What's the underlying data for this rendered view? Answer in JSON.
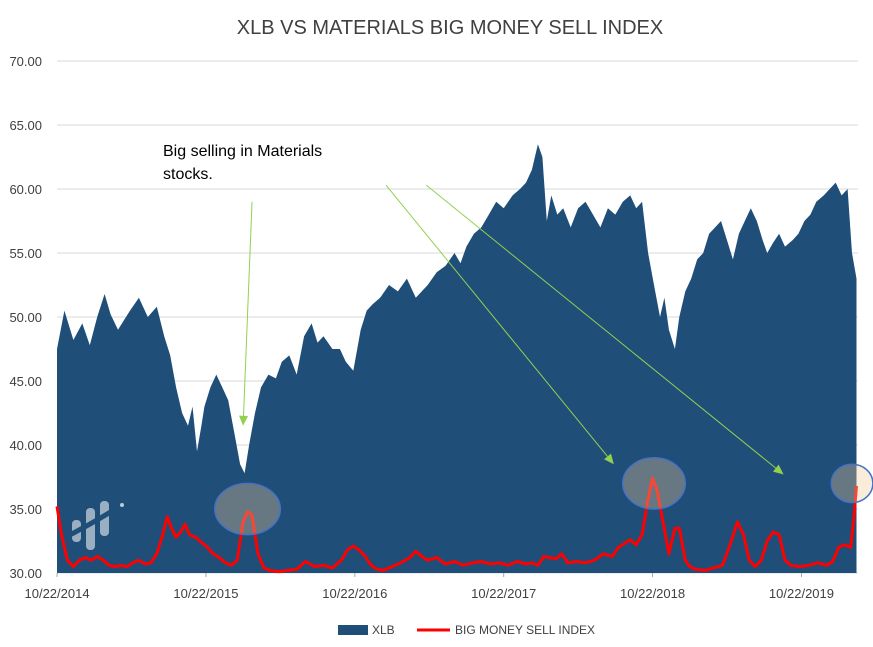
{
  "chart_data": {
    "type": "area",
    "title": "XLB VS MATERIALS BIG MONEY SELL INDEX",
    "ylim": [
      30,
      70
    ],
    "y_ticks": [
      "70.00",
      "65.00",
      "60.00",
      "55.00",
      "50.00",
      "45.00",
      "40.00",
      "35.00",
      "30.00"
    ],
    "x_ticks": [
      "10/22/2014",
      "10/22/2015",
      "10/22/2016",
      "10/22/2017",
      "10/22/2018",
      "10/22/2019"
    ],
    "grid": true,
    "legend_position": "bottom",
    "annotation": {
      "lines": [
        "Big selling in Materials",
        "stocks."
      ]
    },
    "series": [
      {
        "name": "XLB",
        "type": "area",
        "color": "#1f4e79",
        "points": [
          [
            2014.81,
            47.5
          ],
          [
            2014.86,
            50.5
          ],
          [
            2014.92,
            48.2
          ],
          [
            2014.98,
            49.5
          ],
          [
            2015.03,
            47.8
          ],
          [
            2015.08,
            50.0
          ],
          [
            2015.13,
            51.8
          ],
          [
            2015.17,
            50.2
          ],
          [
            2015.22,
            49.0
          ],
          [
            2015.3,
            50.5
          ],
          [
            2015.36,
            51.5
          ],
          [
            2015.42,
            50.0
          ],
          [
            2015.48,
            50.8
          ],
          [
            2015.53,
            48.5
          ],
          [
            2015.57,
            47.0
          ],
          [
            2015.61,
            44.5
          ],
          [
            2015.65,
            42.5
          ],
          [
            2015.69,
            41.5
          ],
          [
            2015.72,
            43.0
          ],
          [
            2015.75,
            39.5
          ],
          [
            2015.78,
            41.5
          ],
          [
            2015.8,
            43.0
          ],
          [
            2015.84,
            44.5
          ],
          [
            2015.88,
            45.5
          ],
          [
            2015.92,
            44.5
          ],
          [
            2015.96,
            43.5
          ],
          [
            2016.0,
            41.0
          ],
          [
            2016.04,
            38.5
          ],
          [
            2016.07,
            37.8
          ],
          [
            2016.1,
            40.0
          ],
          [
            2016.14,
            42.5
          ],
          [
            2016.18,
            44.5
          ],
          [
            2016.23,
            45.5
          ],
          [
            2016.28,
            45.2
          ],
          [
            2016.32,
            46.5
          ],
          [
            2016.37,
            47.0
          ],
          [
            2016.42,
            45.5
          ],
          [
            2016.47,
            48.5
          ],
          [
            2016.52,
            49.5
          ],
          [
            2016.56,
            48.0
          ],
          [
            2016.6,
            48.5
          ],
          [
            2016.66,
            47.5
          ],
          [
            2016.71,
            47.5
          ],
          [
            2016.75,
            46.5
          ],
          [
            2016.8,
            45.8
          ],
          [
            2016.85,
            49.0
          ],
          [
            2016.89,
            50.5
          ],
          [
            2016.93,
            51.0
          ],
          [
            2016.98,
            51.5
          ],
          [
            2017.04,
            52.5
          ],
          [
            2017.1,
            52.0
          ],
          [
            2017.16,
            53.0
          ],
          [
            2017.22,
            51.5
          ],
          [
            2017.3,
            52.5
          ],
          [
            2017.36,
            53.5
          ],
          [
            2017.42,
            54.0
          ],
          [
            2017.48,
            55.0
          ],
          [
            2017.52,
            54.2
          ],
          [
            2017.56,
            55.5
          ],
          [
            2017.61,
            56.5
          ],
          [
            2017.66,
            57.0
          ],
          [
            2017.71,
            58.0
          ],
          [
            2017.76,
            59.0
          ],
          [
            2017.81,
            58.5
          ],
          [
            2017.87,
            59.5
          ],
          [
            2017.92,
            60.0
          ],
          [
            2017.96,
            60.5
          ],
          [
            2018.0,
            61.5
          ],
          [
            2018.04,
            63.5
          ],
          [
            2018.07,
            62.5
          ],
          [
            2018.1,
            57.5
          ],
          [
            2018.13,
            59.5
          ],
          [
            2018.17,
            58.0
          ],
          [
            2018.21,
            58.5
          ],
          [
            2018.26,
            57.0
          ],
          [
            2018.31,
            58.5
          ],
          [
            2018.36,
            59.0
          ],
          [
            2018.41,
            58.0
          ],
          [
            2018.46,
            57.0
          ],
          [
            2018.51,
            58.5
          ],
          [
            2018.56,
            58.0
          ],
          [
            2018.61,
            59.0
          ],
          [
            2018.66,
            59.5
          ],
          [
            2018.7,
            58.5
          ],
          [
            2018.74,
            59.0
          ],
          [
            2018.78,
            55.0
          ],
          [
            2018.82,
            52.5
          ],
          [
            2018.86,
            50.0
          ],
          [
            2018.89,
            51.5
          ],
          [
            2018.92,
            49.0
          ],
          [
            2018.96,
            47.5
          ],
          [
            2018.99,
            50.0
          ],
          [
            2019.03,
            52.0
          ],
          [
            2019.07,
            53.0
          ],
          [
            2019.11,
            54.5
          ],
          [
            2019.15,
            55.0
          ],
          [
            2019.19,
            56.5
          ],
          [
            2019.23,
            57.0
          ],
          [
            2019.27,
            57.5
          ],
          [
            2019.31,
            56.0
          ],
          [
            2019.35,
            54.5
          ],
          [
            2019.39,
            56.5
          ],
          [
            2019.43,
            57.5
          ],
          [
            2019.47,
            58.5
          ],
          [
            2019.51,
            57.5
          ],
          [
            2019.55,
            56.0
          ],
          [
            2019.58,
            55.0
          ],
          [
            2019.62,
            55.8
          ],
          [
            2019.66,
            56.5
          ],
          [
            2019.7,
            55.5
          ],
          [
            2019.75,
            56.0
          ],
          [
            2019.79,
            56.5
          ],
          [
            2019.83,
            57.5
          ],
          [
            2019.87,
            58.0
          ],
          [
            2019.91,
            59.0
          ],
          [
            2019.96,
            59.5
          ],
          [
            2020.0,
            60.0
          ],
          [
            2020.04,
            60.5
          ],
          [
            2020.08,
            59.5
          ],
          [
            2020.12,
            60.0
          ],
          [
            2020.15,
            55.0
          ],
          [
            2020.18,
            53.0
          ]
        ]
      },
      {
        "name": "BIG MONEY SELL INDEX",
        "type": "line",
        "color": "#ff0000",
        "points": [
          [
            2014.81,
            35.2
          ],
          [
            2014.84,
            33.0
          ],
          [
            2014.88,
            31.0
          ],
          [
            2014.92,
            30.5
          ],
          [
            2014.96,
            31.0
          ],
          [
            2015.0,
            31.2
          ],
          [
            2015.04,
            31.0
          ],
          [
            2015.08,
            31.3
          ],
          [
            2015.12,
            31.0
          ],
          [
            2015.16,
            30.6
          ],
          [
            2015.2,
            30.5
          ],
          [
            2015.24,
            30.6
          ],
          [
            2015.28,
            30.5
          ],
          [
            2015.32,
            30.8
          ],
          [
            2015.36,
            31.0
          ],
          [
            2015.4,
            30.7
          ],
          [
            2015.44,
            30.8
          ],
          [
            2015.48,
            31.5
          ],
          [
            2015.52,
            33.0
          ],
          [
            2015.55,
            34.4
          ],
          [
            2015.58,
            33.5
          ],
          [
            2015.61,
            32.8
          ],
          [
            2015.64,
            33.2
          ],
          [
            2015.67,
            33.8
          ],
          [
            2015.7,
            33.0
          ],
          [
            2015.74,
            32.8
          ],
          [
            2015.78,
            32.4
          ],
          [
            2015.82,
            32.0
          ],
          [
            2015.86,
            31.5
          ],
          [
            2015.9,
            31.2
          ],
          [
            2015.94,
            30.8
          ],
          [
            2015.98,
            30.6
          ],
          [
            2016.02,
            31.0
          ],
          [
            2016.06,
            34.0
          ],
          [
            2016.09,
            34.8
          ],
          [
            2016.12,
            34.5
          ],
          [
            2016.16,
            31.5
          ],
          [
            2016.2,
            30.4
          ],
          [
            2016.24,
            30.2
          ],
          [
            2016.3,
            30.1
          ],
          [
            2016.36,
            30.2
          ],
          [
            2016.42,
            30.3
          ],
          [
            2016.48,
            30.9
          ],
          [
            2016.54,
            30.5
          ],
          [
            2016.6,
            30.6
          ],
          [
            2016.66,
            30.4
          ],
          [
            2016.72,
            31.0
          ],
          [
            2016.76,
            31.8
          ],
          [
            2016.8,
            32.1
          ],
          [
            2016.84,
            31.8
          ],
          [
            2016.88,
            31.3
          ],
          [
            2016.92,
            30.6
          ],
          [
            2016.96,
            30.3
          ],
          [
            2017.0,
            30.2
          ],
          [
            2017.06,
            30.5
          ],
          [
            2017.12,
            30.8
          ],
          [
            2017.18,
            31.2
          ],
          [
            2017.22,
            31.7
          ],
          [
            2017.26,
            31.3
          ],
          [
            2017.3,
            31.0
          ],
          [
            2017.36,
            31.2
          ],
          [
            2017.42,
            30.7
          ],
          [
            2017.48,
            30.9
          ],
          [
            2017.54,
            30.6
          ],
          [
            2017.6,
            30.8
          ],
          [
            2017.66,
            30.9
          ],
          [
            2017.72,
            30.7
          ],
          [
            2017.78,
            30.8
          ],
          [
            2017.84,
            30.6
          ],
          [
            2017.9,
            30.9
          ],
          [
            2017.96,
            30.7
          ],
          [
            2018.0,
            30.8
          ],
          [
            2018.04,
            30.6
          ],
          [
            2018.08,
            31.3
          ],
          [
            2018.12,
            31.2
          ],
          [
            2018.16,
            31.1
          ],
          [
            2018.2,
            31.5
          ],
          [
            2018.24,
            30.8
          ],
          [
            2018.3,
            30.9
          ],
          [
            2018.36,
            30.8
          ],
          [
            2018.42,
            31.0
          ],
          [
            2018.48,
            31.5
          ],
          [
            2018.54,
            31.3
          ],
          [
            2018.58,
            32.0
          ],
          [
            2018.62,
            32.3
          ],
          [
            2018.66,
            32.6
          ],
          [
            2018.7,
            32.2
          ],
          [
            2018.74,
            33.0
          ],
          [
            2018.78,
            35.8
          ],
          [
            2018.81,
            37.4
          ],
          [
            2018.84,
            36.5
          ],
          [
            2018.88,
            34.0
          ],
          [
            2018.92,
            31.5
          ],
          [
            2018.96,
            33.5
          ],
          [
            2018.99,
            33.5
          ],
          [
            2019.03,
            31.0
          ],
          [
            2019.06,
            30.5
          ],
          [
            2019.1,
            30.3
          ],
          [
            2019.16,
            30.2
          ],
          [
            2019.22,
            30.4
          ],
          [
            2019.28,
            30.6
          ],
          [
            2019.34,
            32.5
          ],
          [
            2019.38,
            34.0
          ],
          [
            2019.42,
            33.0
          ],
          [
            2019.46,
            31.0
          ],
          [
            2019.5,
            30.5
          ],
          [
            2019.54,
            31.0
          ],
          [
            2019.58,
            32.5
          ],
          [
            2019.62,
            33.2
          ],
          [
            2019.66,
            33.0
          ],
          [
            2019.7,
            31.0
          ],
          [
            2019.74,
            30.6
          ],
          [
            2019.8,
            30.5
          ],
          [
            2019.86,
            30.6
          ],
          [
            2019.92,
            30.8
          ],
          [
            2019.98,
            30.6
          ],
          [
            2020.02,
            30.9
          ],
          [
            2020.06,
            32.0
          ],
          [
            2020.1,
            32.2
          ],
          [
            2020.14,
            32.0
          ],
          [
            2020.16,
            34.0
          ],
          [
            2020.18,
            36.8
          ]
        ]
      }
    ],
    "highlights": [
      {
        "x": 2016.09,
        "y": 35.0,
        "rx": 0.22,
        "ry": 2.0
      },
      {
        "x": 2018.82,
        "y": 37.0,
        "rx": 0.21,
        "ry": 2.0
      },
      {
        "x": 2020.15,
        "y": 37.0,
        "rx": 0.14,
        "ry": 1.5
      }
    ],
    "arrows": [
      {
        "from": [
          2016.12,
          59.0
        ],
        "to": [
          2016.06,
          41.5
        ]
      },
      {
        "from": [
          2017.02,
          60.3
        ],
        "to": [
          2018.55,
          38.5
        ]
      },
      {
        "from": [
          2017.29,
          60.3
        ],
        "to": [
          2019.69,
          37.7
        ]
      }
    ]
  }
}
